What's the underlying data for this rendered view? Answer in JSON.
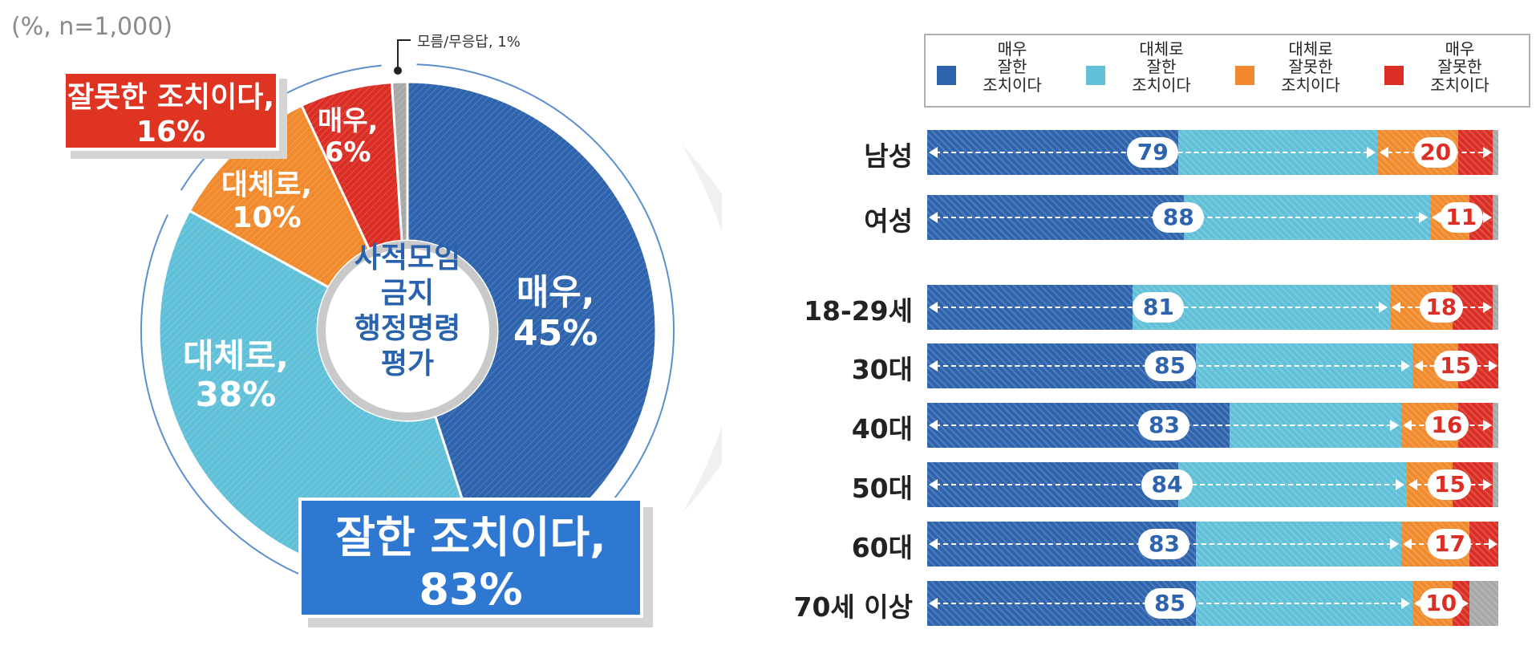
{
  "note": "(%, n=1,000)",
  "colors": {
    "very_good": "#2e63ad",
    "somewhat_good": "#5fc0d8",
    "somewhat_bad": "#f08a2c",
    "very_bad": "#db2e25",
    "dont_know": "#a7a7a7"
  },
  "donut": {
    "center_title": [
      "사적모임",
      "금지",
      "행정명령",
      "평가"
    ],
    "slices": [
      {
        "key": "very_good",
        "line1": "매우,",
        "line2": "45%",
        "value": 45
      },
      {
        "key": "somewhat_good",
        "line1": "대체로,",
        "line2": "38%",
        "value": 38
      },
      {
        "key": "somewhat_bad",
        "line1": "대체로,",
        "line2": "10%",
        "value": 10
      },
      {
        "key": "very_bad",
        "line1": "매우,",
        "line2": "6%",
        "value": 6
      },
      {
        "key": "dont_know",
        "value": 1
      }
    ],
    "dont_know_note": "모름/무응답, 1%",
    "bad_callout": {
      "line1": "잘못한 조치이다,",
      "line2": "16%"
    },
    "good_callout": {
      "line1": "잘한 조치이다,",
      "line2": "83%"
    }
  },
  "legend": [
    {
      "key": "very_good",
      "lines": [
        "매우",
        "잘한",
        "조치이다"
      ]
    },
    {
      "key": "somewhat_good",
      "lines": [
        "대체로",
        "잘한",
        "조치이다"
      ]
    },
    {
      "key": "somewhat_bad",
      "lines": [
        "대체로",
        "잘못한",
        "조치이다"
      ]
    },
    {
      "key": "very_bad",
      "lines": [
        "매우",
        "잘못한",
        "조치이다"
      ]
    }
  ],
  "chart_data": [
    {
      "type": "pie",
      "categories": [
        "매우 잘한 조치이다",
        "대체로 잘한 조치이다",
        "대체로 잘못한 조치이다",
        "매우 잘못한 조치이다",
        "모름/무응답"
      ],
      "values": [
        45,
        38,
        10,
        6,
        1
      ],
      "title": ""
    },
    {
      "type": "bar",
      "orientation": "horizontal",
      "stacked": true,
      "categories": [
        "남성",
        "여성",
        "18-29세",
        "30대",
        "40대",
        "50대",
        "60대",
        "70세 이상"
      ],
      "rows": [
        {
          "label": "남성",
          "good_total": 79,
          "bad_total": 20,
          "segments": [
            44,
            35,
            14,
            6,
            1
          ]
        },
        {
          "label": "여성",
          "good_total": 88,
          "bad_total": 11,
          "segments": [
            45,
            43,
            7,
            4,
            1
          ]
        },
        {
          "label": "18-29세",
          "good_total": 81,
          "bad_total": 18,
          "segments": [
            36,
            45,
            11,
            7,
            1
          ]
        },
        {
          "label": "30대",
          "good_total": 85,
          "bad_total": 15,
          "segments": [
            47,
            38,
            8,
            7,
            0
          ]
        },
        {
          "label": "40대",
          "good_total": 83,
          "bad_total": 16,
          "segments": [
            53,
            30,
            10,
            6,
            1
          ]
        },
        {
          "label": "50대",
          "good_total": 84,
          "bad_total": 15,
          "segments": [
            44,
            40,
            8,
            7,
            1
          ]
        },
        {
          "label": "60대",
          "good_total": 83,
          "bad_total": 17,
          "segments": [
            47,
            36,
            12,
            5,
            0
          ]
        },
        {
          "label": "70세 이상",
          "good_total": 85,
          "bad_total": 10,
          "segments": [
            47,
            38,
            7,
            3,
            5
          ]
        }
      ],
      "series": [
        {
          "name": "매우 잘한 조치이다"
        },
        {
          "name": "대체로 잘한 조치이다"
        },
        {
          "name": "대체로 잘못한 조치이다"
        },
        {
          "name": "매우 잘못한 조치이다"
        },
        {
          "name": "모름/무응답"
        }
      ],
      "xlim": [
        0,
        100
      ]
    }
  ]
}
